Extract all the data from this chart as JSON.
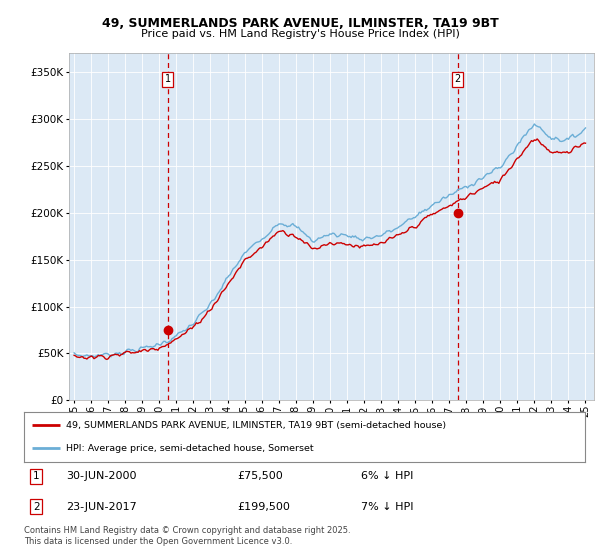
{
  "title1": "49, SUMMERLANDS PARK AVENUE, ILMINSTER, TA19 9BT",
  "title2": "Price paid vs. HM Land Registry's House Price Index (HPI)",
  "plot_bg_color": "#dce9f5",
  "hpi_color": "#6baed6",
  "price_color": "#cc0000",
  "vline_color": "#cc0000",
  "marker1_year": 2000.5,
  "marker2_year": 2017.5,
  "marker1_label": "1",
  "marker2_label": "2",
  "marker1_price": 75500,
  "marker2_price": 199500,
  "marker1_price_y": 75500,
  "marker2_price_y": 199500,
  "marker1_date": "30-JUN-2000",
  "marker2_date": "23-JUN-2017",
  "marker1_pct": "6% ↓ HPI",
  "marker2_pct": "7% ↓ HPI",
  "legend_entry1": "49, SUMMERLANDS PARK AVENUE, ILMINSTER, TA19 9BT (semi-detached house)",
  "legend_entry2": "HPI: Average price, semi-detached house, Somerset",
  "footer": "Contains HM Land Registry data © Crown copyright and database right 2025.\nThis data is licensed under the Open Government Licence v3.0.",
  "ylim": [
    0,
    370000
  ],
  "xlim_min": 1994.7,
  "xlim_max": 2025.5
}
